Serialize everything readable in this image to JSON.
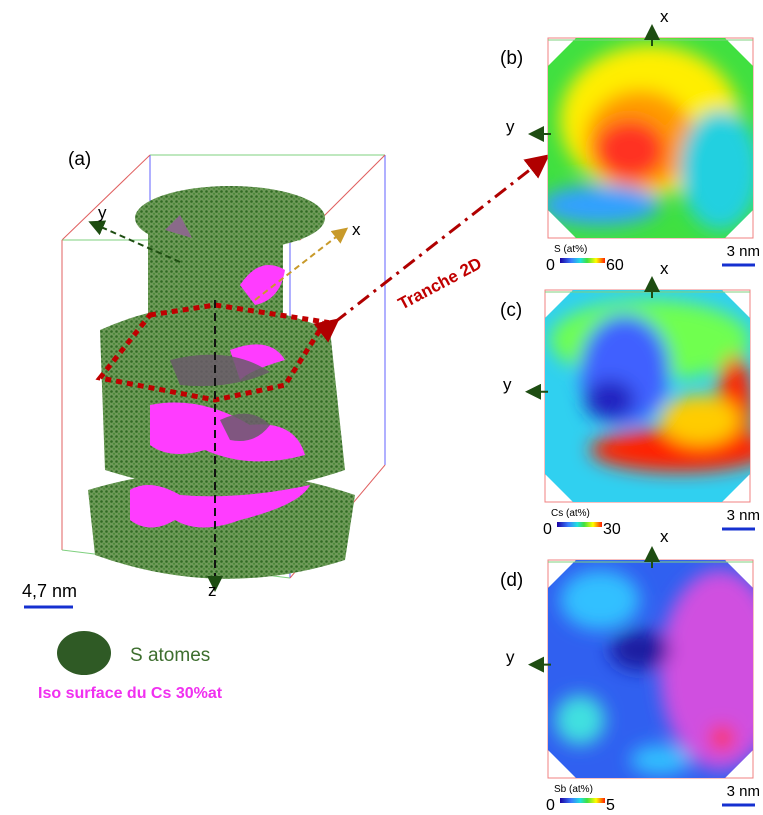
{
  "panel_a": {
    "label": "(a)",
    "axis_x": "x",
    "axis_y": "y",
    "axis_z": "z",
    "annotation": "Tranche 2D",
    "scale_bar": "4,7 nm",
    "legend": [
      {
        "label": "S atomes"
      },
      {
        "label": "Iso surface du Cs 30%at"
      }
    ]
  },
  "maps": [
    {
      "label": "(b)",
      "axis_x": "x",
      "axis_y": "y",
      "colorbar": {
        "title": "S (at%)",
        "min": 0,
        "max": 60
      },
      "scale_bar": "3 nm"
    },
    {
      "label": "(c)",
      "axis_x": "x",
      "axis_y": "y",
      "colorbar": {
        "title": "Cs (at%)",
        "min": 0,
        "max": 30
      },
      "scale_bar": "3 nm"
    },
    {
      "label": "(d)",
      "axis_x": "x",
      "axis_y": "y",
      "colorbar": {
        "title": "Sb (at%)",
        "min": 0,
        "max": 5
      },
      "scale_bar": "3 nm"
    }
  ]
}
